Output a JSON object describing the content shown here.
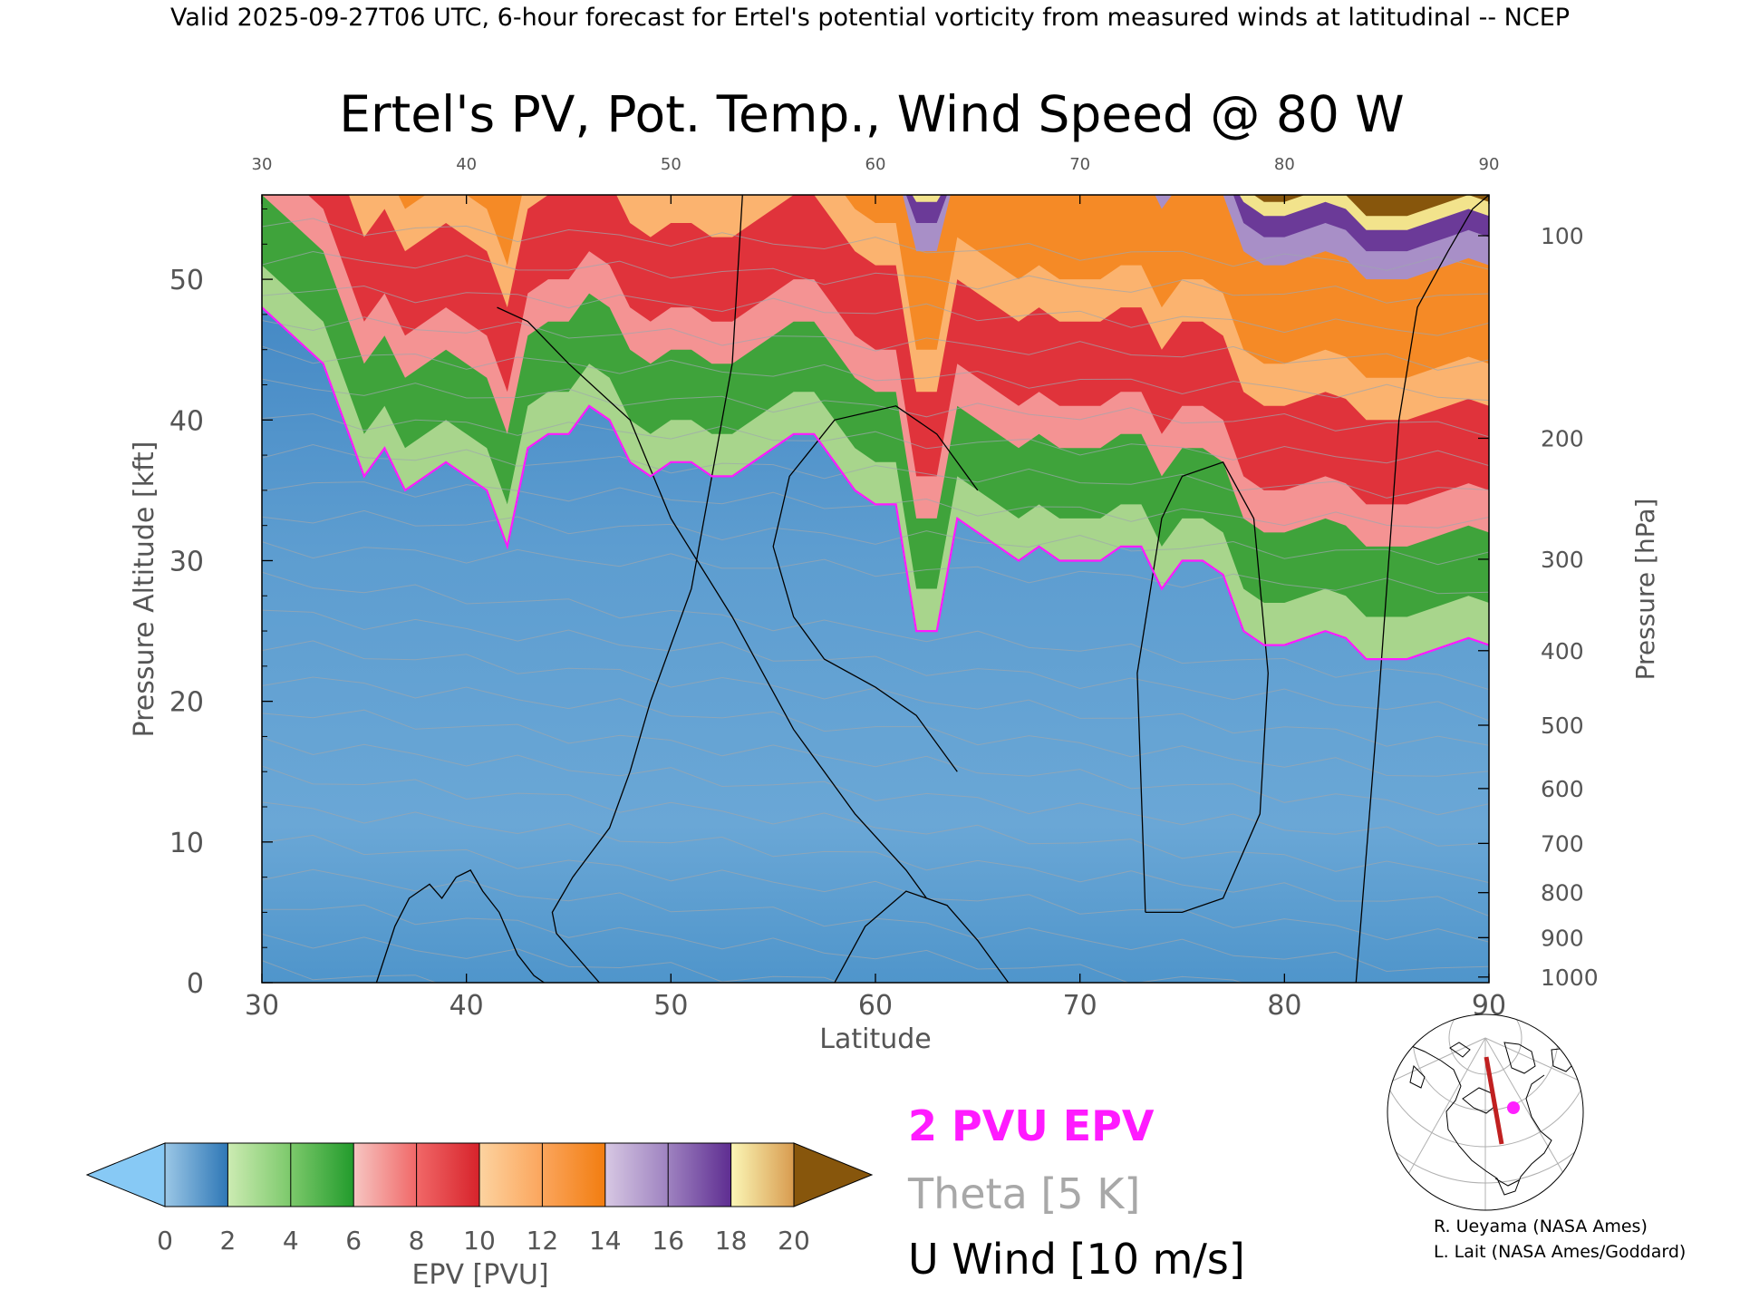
{
  "header": {
    "valid_line": "Valid 2025-09-27T06 UTC, 6-hour forecast for Ertel's potential vorticity from measured winds at latitudinal -- NCEP"
  },
  "chart_data": {
    "type": "heatmap",
    "title": "Ertel's PV, Pot. Temp., Wind Speed @ 80 W",
    "xlabel": "Latitude",
    "ylabel_left": "Pressure Altitude [kft]",
    "ylabel_right": "Pressure [hPa]",
    "xlim": [
      30,
      90
    ],
    "ylim": [
      0,
      56
    ],
    "x_ticks": [
      30,
      40,
      50,
      60,
      70,
      80,
      90
    ],
    "x_ticks_top": [
      30,
      40,
      50,
      60,
      70,
      80,
      90
    ],
    "y_ticks_left": [
      0,
      10,
      20,
      30,
      40,
      50
    ],
    "y_ticks_right": [
      {
        "label": "100",
        "kft": 53.1
      },
      {
        "label": "200",
        "kft": 38.7
      },
      {
        "label": "300",
        "kft": 30.1
      },
      {
        "label": "400",
        "kft": 23.6
      },
      {
        "label": "500",
        "kft": 18.3
      },
      {
        "label": "600",
        "kft": 13.8
      },
      {
        "label": "700",
        "kft": 9.9
      },
      {
        "label": "800",
        "kft": 6.4
      },
      {
        "label": "900",
        "kft": 3.2
      },
      {
        "label": "1000",
        "kft": 0.4
      }
    ],
    "grid": false,
    "pv2_line": {
      "lat": [
        30,
        31.5,
        33,
        34,
        35,
        36,
        37,
        38,
        39,
        40,
        41,
        42,
        43,
        44,
        45,
        46,
        47,
        48,
        49,
        50,
        51,
        52,
        53,
        54,
        55,
        56,
        57,
        58,
        59,
        60,
        61,
        62,
        63,
        64,
        65,
        66,
        67,
        68,
        69,
        70,
        71,
        72,
        73,
        74,
        75,
        76,
        77,
        78,
        79,
        80,
        81,
        82,
        83,
        84,
        85,
        86,
        87,
        88,
        89,
        90
      ],
      "kft": [
        48,
        46,
        44,
        40,
        36,
        38,
        35,
        36,
        37,
        36,
        35,
        31,
        38,
        39,
        39,
        41,
        40,
        37,
        36,
        37,
        37,
        36,
        36,
        37,
        38,
        39,
        39,
        37,
        35,
        34,
        34,
        25,
        25,
        33,
        32,
        31,
        30,
        31,
        30,
        30,
        30,
        31,
        31,
        28,
        30,
        30,
        29,
        25,
        24,
        24,
        24.5,
        25,
        24.5,
        23,
        23,
        23,
        23.5,
        24,
        24.5,
        24
      ]
    },
    "wind_10ms_contours": [
      {
        "lat": [
          35.6,
          36.5,
          37.2,
          38.2,
          38.8,
          39.5,
          40.2,
          40.8,
          41.6,
          42.5,
          43.3,
          43.8
        ],
        "kft": [
          0,
          4,
          6,
          7,
          6,
          7.5,
          8,
          6.5,
          5,
          2,
          0.5,
          0
        ]
      },
      {
        "lat": [
          46.5,
          45.3,
          44.4,
          44.2,
          45.2,
          47.0,
          48.0,
          49.0,
          51.0,
          52.0,
          53.0,
          53.5
        ],
        "kft": [
          0,
          2,
          3.5,
          5,
          7.5,
          11,
          15,
          20,
          28,
          36,
          44,
          56
        ]
      },
      {
        "lat": [
          41.5,
          43.0,
          45.0,
          48.0,
          50.0,
          53.0,
          56.0,
          59.0,
          61.5,
          62.5
        ],
        "kft": [
          48,
          47,
          44,
          40,
          33,
          26,
          18,
          12,
          8,
          6
        ]
      },
      {
        "lat": [
          64.0,
          62.0,
          60.0,
          57.5,
          56.0,
          55.0,
          55.8,
          58.0,
          61.0,
          63.0,
          65.0
        ],
        "kft": [
          15,
          19,
          21,
          23,
          26,
          31,
          36,
          40,
          41,
          39,
          35
        ]
      },
      {
        "lat": [
          73.2,
          72.8,
          74.0,
          75.0,
          77.0,
          78.5,
          79.2,
          78.8,
          77.0,
          75.0,
          73.2
        ],
        "kft": [
          5,
          22,
          33,
          36,
          37,
          33,
          22,
          12,
          6,
          5,
          5
        ]
      },
      {
        "lat": [
          83.5,
          84.6,
          85.6,
          86.5,
          88.0,
          89.2,
          90.0
        ],
        "kft": [
          0,
          20,
          40,
          48,
          52,
          55,
          56
        ]
      },
      {
        "lat": [
          58.0,
          59.5,
          61.5,
          63.5,
          65.0,
          66.5
        ],
        "kft": [
          0,
          4,
          6.5,
          5.5,
          3,
          0
        ]
      }
    ],
    "colorbar": {
      "label": "EPV [PVU]",
      "ticks": [
        0,
        2,
        4,
        6,
        8,
        10,
        12,
        14,
        16,
        18,
        20
      ],
      "low_extend_color": "#87c9f5",
      "high_extend_color": "#87560c",
      "bins": [
        {
          "from": 0,
          "to": 2,
          "c1": "#9bc7e6",
          "c2": "#2e77b6"
        },
        {
          "from": 2,
          "to": 4,
          "c1": "#ccebb2",
          "c2": "#7cc96b"
        },
        {
          "from": 4,
          "to": 6,
          "c1": "#7cc96b",
          "c2": "#229b2c"
        },
        {
          "from": 6,
          "to": 8,
          "c1": "#f6c6c2",
          "c2": "#f16868"
        },
        {
          "from": 8,
          "to": 10,
          "c1": "#f16868",
          "c2": "#d7232b"
        },
        {
          "from": 10,
          "to": 12,
          "c1": "#fcd3a0",
          "c2": "#fba55c"
        },
        {
          "from": 12,
          "to": 14,
          "c1": "#fba55c",
          "c2": "#f27d10"
        },
        {
          "from": 14,
          "to": 16,
          "c1": "#d7c8e3",
          "c2": "#9e82c0"
        },
        {
          "from": 16,
          "to": 18,
          "c1": "#9e82c0",
          "c2": "#5e2d91"
        },
        {
          "from": 18,
          "to": 20,
          "c1": "#fbf7b6",
          "c2": "#d89b4f"
        }
      ]
    },
    "legend": [
      {
        "text": "2 PVU EPV",
        "color": "#ff1aff"
      },
      {
        "text": "Theta [5 K]",
        "color": "#a8a8a8"
      },
      {
        "text": "U Wind [10 m/s]",
        "color": "#000000"
      }
    ]
  },
  "inset_map": {
    "marker_color": "#ff20ff",
    "section_color": "#c02020"
  },
  "credits": {
    "line1": "R. Ueyama (NASA Ames)",
    "line2": "L. Lait (NASA Ames/Goddard)"
  }
}
